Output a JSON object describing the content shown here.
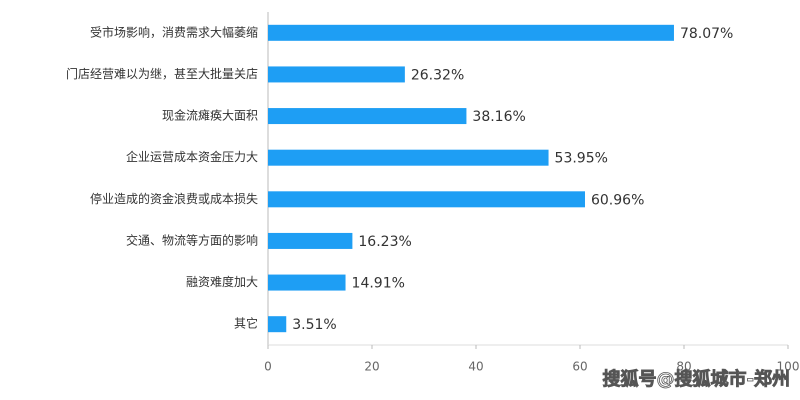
{
  "chart_data": {
    "type": "bar",
    "orientation": "horizontal",
    "categories": [
      "受市场影响，消费需求大幅萎缩",
      "门店经营难以为继，甚至大批量关店",
      "现金流瘫痪大面积",
      "企业运营成本资金压力大",
      "停业造成的资金浪费或成本损失",
      "交通、物流等方面的影响",
      "融资难度加大",
      "其它"
    ],
    "values": [
      78.07,
      26.32,
      38.16,
      53.95,
      60.96,
      16.23,
      14.91,
      3.51
    ],
    "value_labels": [
      "78.07%",
      "26.32%",
      "38.16%",
      "53.95%",
      "60.96%",
      "16.23%",
      "14.91%",
      "3.51%"
    ],
    "color": "#1e9ef4",
    "xlim": [
      0,
      100
    ],
    "xticks": [
      0,
      20,
      40,
      60,
      80,
      100
    ],
    "grid": false,
    "annotation": "搜狐号@搜狐城市-郑州"
  }
}
